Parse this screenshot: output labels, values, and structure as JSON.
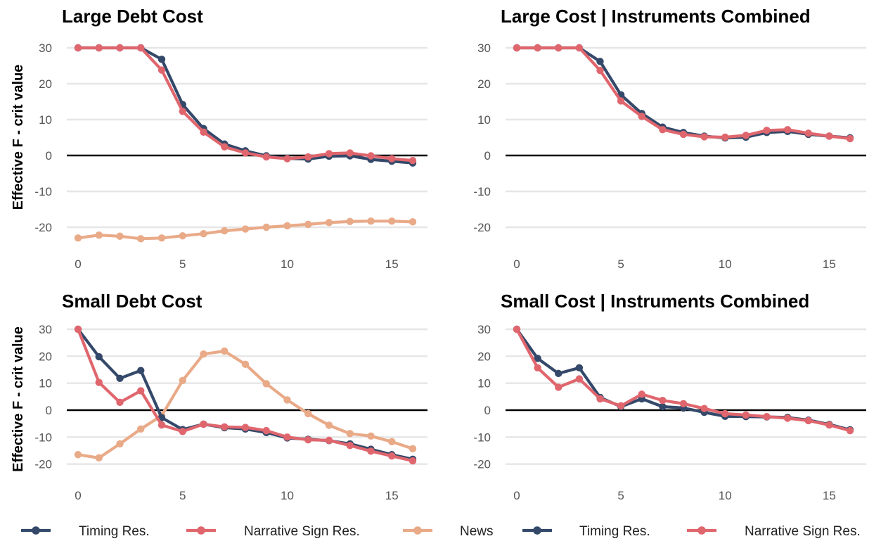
{
  "legend": [
    {
      "label": "Timing Res.",
      "color": "#34496A"
    },
    {
      "label": "Narrative Sign Res.",
      "color": "#E0666E"
    },
    {
      "label": "News",
      "color": "#E9AA88"
    },
    {
      "label": "Timing Res.",
      "color": "#34496A"
    },
    {
      "label": "Narrative Sign Res.",
      "color": "#E0666E"
    }
  ],
  "chart_data": [
    {
      "type": "line",
      "title": "Large Debt Cost",
      "ylabel": "Effective F - crit value",
      "xlabel": "",
      "xlim": [
        -0.8,
        16.8
      ],
      "ylim": [
        -27,
        33
      ],
      "xticks": [
        0,
        5,
        10,
        15
      ],
      "yticks": [
        30,
        20,
        10,
        0,
        -10,
        -20
      ],
      "grid": true,
      "x": [
        0,
        1,
        2,
        3,
        4,
        5,
        6,
        7,
        8,
        9,
        10,
        11,
        12,
        13,
        14,
        15,
        16
      ],
      "series": [
        {
          "name": "News",
          "color": "#E9AA88",
          "values": [
            -23,
            -22.2,
            -22.5,
            -23.2,
            -23,
            -22.4,
            -21.8,
            -21,
            -20.5,
            -20,
            -19.6,
            -19.2,
            -18.7,
            -18.4,
            -18.3,
            -18.3,
            -18.5
          ]
        },
        {
          "name": "Timing Res.",
          "color": "#34496A",
          "values": [
            30,
            30,
            30,
            30,
            26.8,
            14.2,
            7.5,
            3.2,
            1.3,
            -0.1,
            -0.8,
            -1,
            -0.2,
            -0.1,
            -1.1,
            -1.6,
            -2.1
          ]
        },
        {
          "name": "Narrative Sign Res.",
          "color": "#E0666E",
          "values": [
            30,
            30,
            30,
            30,
            23.8,
            12.3,
            6.5,
            2.4,
            0.7,
            -0.4,
            -0.9,
            -0.4,
            0.5,
            0.7,
            -0.1,
            -0.9,
            -1.4
          ]
        }
      ]
    },
    {
      "type": "line",
      "title": "Large Cost | Instruments Combined",
      "ylabel": "",
      "xlabel": "",
      "xlim": [
        -0.8,
        16.8
      ],
      "ylim": [
        -27,
        33
      ],
      "xticks": [
        0,
        5,
        10,
        15
      ],
      "yticks": [
        30,
        20,
        10,
        0,
        -10,
        -20
      ],
      "grid": true,
      "x": [
        0,
        1,
        2,
        3,
        4,
        5,
        6,
        7,
        8,
        9,
        10,
        11,
        12,
        13,
        14,
        15,
        16
      ],
      "series": [
        {
          "name": "Timing Res.",
          "color": "#34496A",
          "values": [
            30,
            30,
            30,
            30,
            26.2,
            16.9,
            11.7,
            7.9,
            6.4,
            5.4,
            4.9,
            5.1,
            6.4,
            6.7,
            5.9,
            5.4,
            4.9
          ]
        },
        {
          "name": "Narrative Sign Res.",
          "color": "#E0666E",
          "values": [
            30,
            30,
            30,
            30,
            23.7,
            15.2,
            10.9,
            7.2,
            5.9,
            5.2,
            5.1,
            5.6,
            7,
            7.2,
            6.2,
            5.4,
            4.7
          ]
        }
      ]
    },
    {
      "type": "line",
      "title": "Small Debt Cost",
      "ylabel": "Effective F - crit value",
      "xlabel": "",
      "xlim": [
        -0.8,
        16.8
      ],
      "ylim": [
        -23,
        33
      ],
      "xticks": [
        0,
        5,
        10,
        15
      ],
      "yticks": [
        30,
        20,
        10,
        0,
        -10,
        -20
      ],
      "grid": true,
      "x": [
        0,
        1,
        2,
        3,
        4,
        5,
        6,
        7,
        8,
        9,
        10,
        11,
        12,
        13,
        14,
        15,
        16
      ],
      "series": [
        {
          "name": "News",
          "color": "#E9AA88",
          "values": [
            -16.5,
            -17.7,
            -12.5,
            -7,
            -2,
            11,
            20.8,
            21.9,
            17,
            9.8,
            3.8,
            -1.3,
            -5.6,
            -8.7,
            -9.6,
            -11.7,
            -14.3
          ]
        },
        {
          "name": "Timing Res.",
          "color": "#34496A",
          "values": [
            30,
            19.8,
            11.8,
            14.7,
            -2.8,
            -7.2,
            -5.2,
            -6.5,
            -7,
            -8.3,
            -10.3,
            -10.8,
            -11.3,
            -12.5,
            -14.5,
            -16.5,
            -18.2
          ]
        },
        {
          "name": "Narrative Sign Res.",
          "color": "#E0666E",
          "values": [
            30,
            10.3,
            2.9,
            7.2,
            -5.5,
            -7.9,
            -5.2,
            -6.2,
            -6.4,
            -7.6,
            -10,
            -11,
            -11.2,
            -13.1,
            -15.2,
            -17,
            -18.8
          ]
        }
      ]
    },
    {
      "type": "line",
      "title": "Small Cost | Instruments Combined",
      "ylabel": "",
      "xlabel": "",
      "xlim": [
        -0.8,
        16.8
      ],
      "ylim": [
        -23,
        33
      ],
      "xticks": [
        0,
        5,
        10,
        15
      ],
      "yticks": [
        30,
        20,
        10,
        0,
        -10,
        -20
      ],
      "grid": true,
      "x": [
        0,
        1,
        2,
        3,
        4,
        5,
        6,
        7,
        8,
        9,
        10,
        11,
        12,
        13,
        14,
        15,
        16
      ],
      "series": [
        {
          "name": "Timing Res.",
          "color": "#34496A",
          "values": [
            30,
            19.2,
            13.6,
            15.7,
            4.7,
            1.3,
            4.2,
            1.3,
            0.8,
            -0.8,
            -2.3,
            -2.4,
            -2.5,
            -2.7,
            -3.7,
            -5.3,
            -7.3
          ]
        },
        {
          "name": "Narrative Sign Res.",
          "color": "#E0666E",
          "values": [
            30,
            15.7,
            8.5,
            11.6,
            4.2,
            1.6,
            5.9,
            3.6,
            2.4,
            0.6,
            -1.3,
            -1.8,
            -2.4,
            -3,
            -3.9,
            -5.5,
            -7.6
          ]
        }
      ]
    }
  ]
}
